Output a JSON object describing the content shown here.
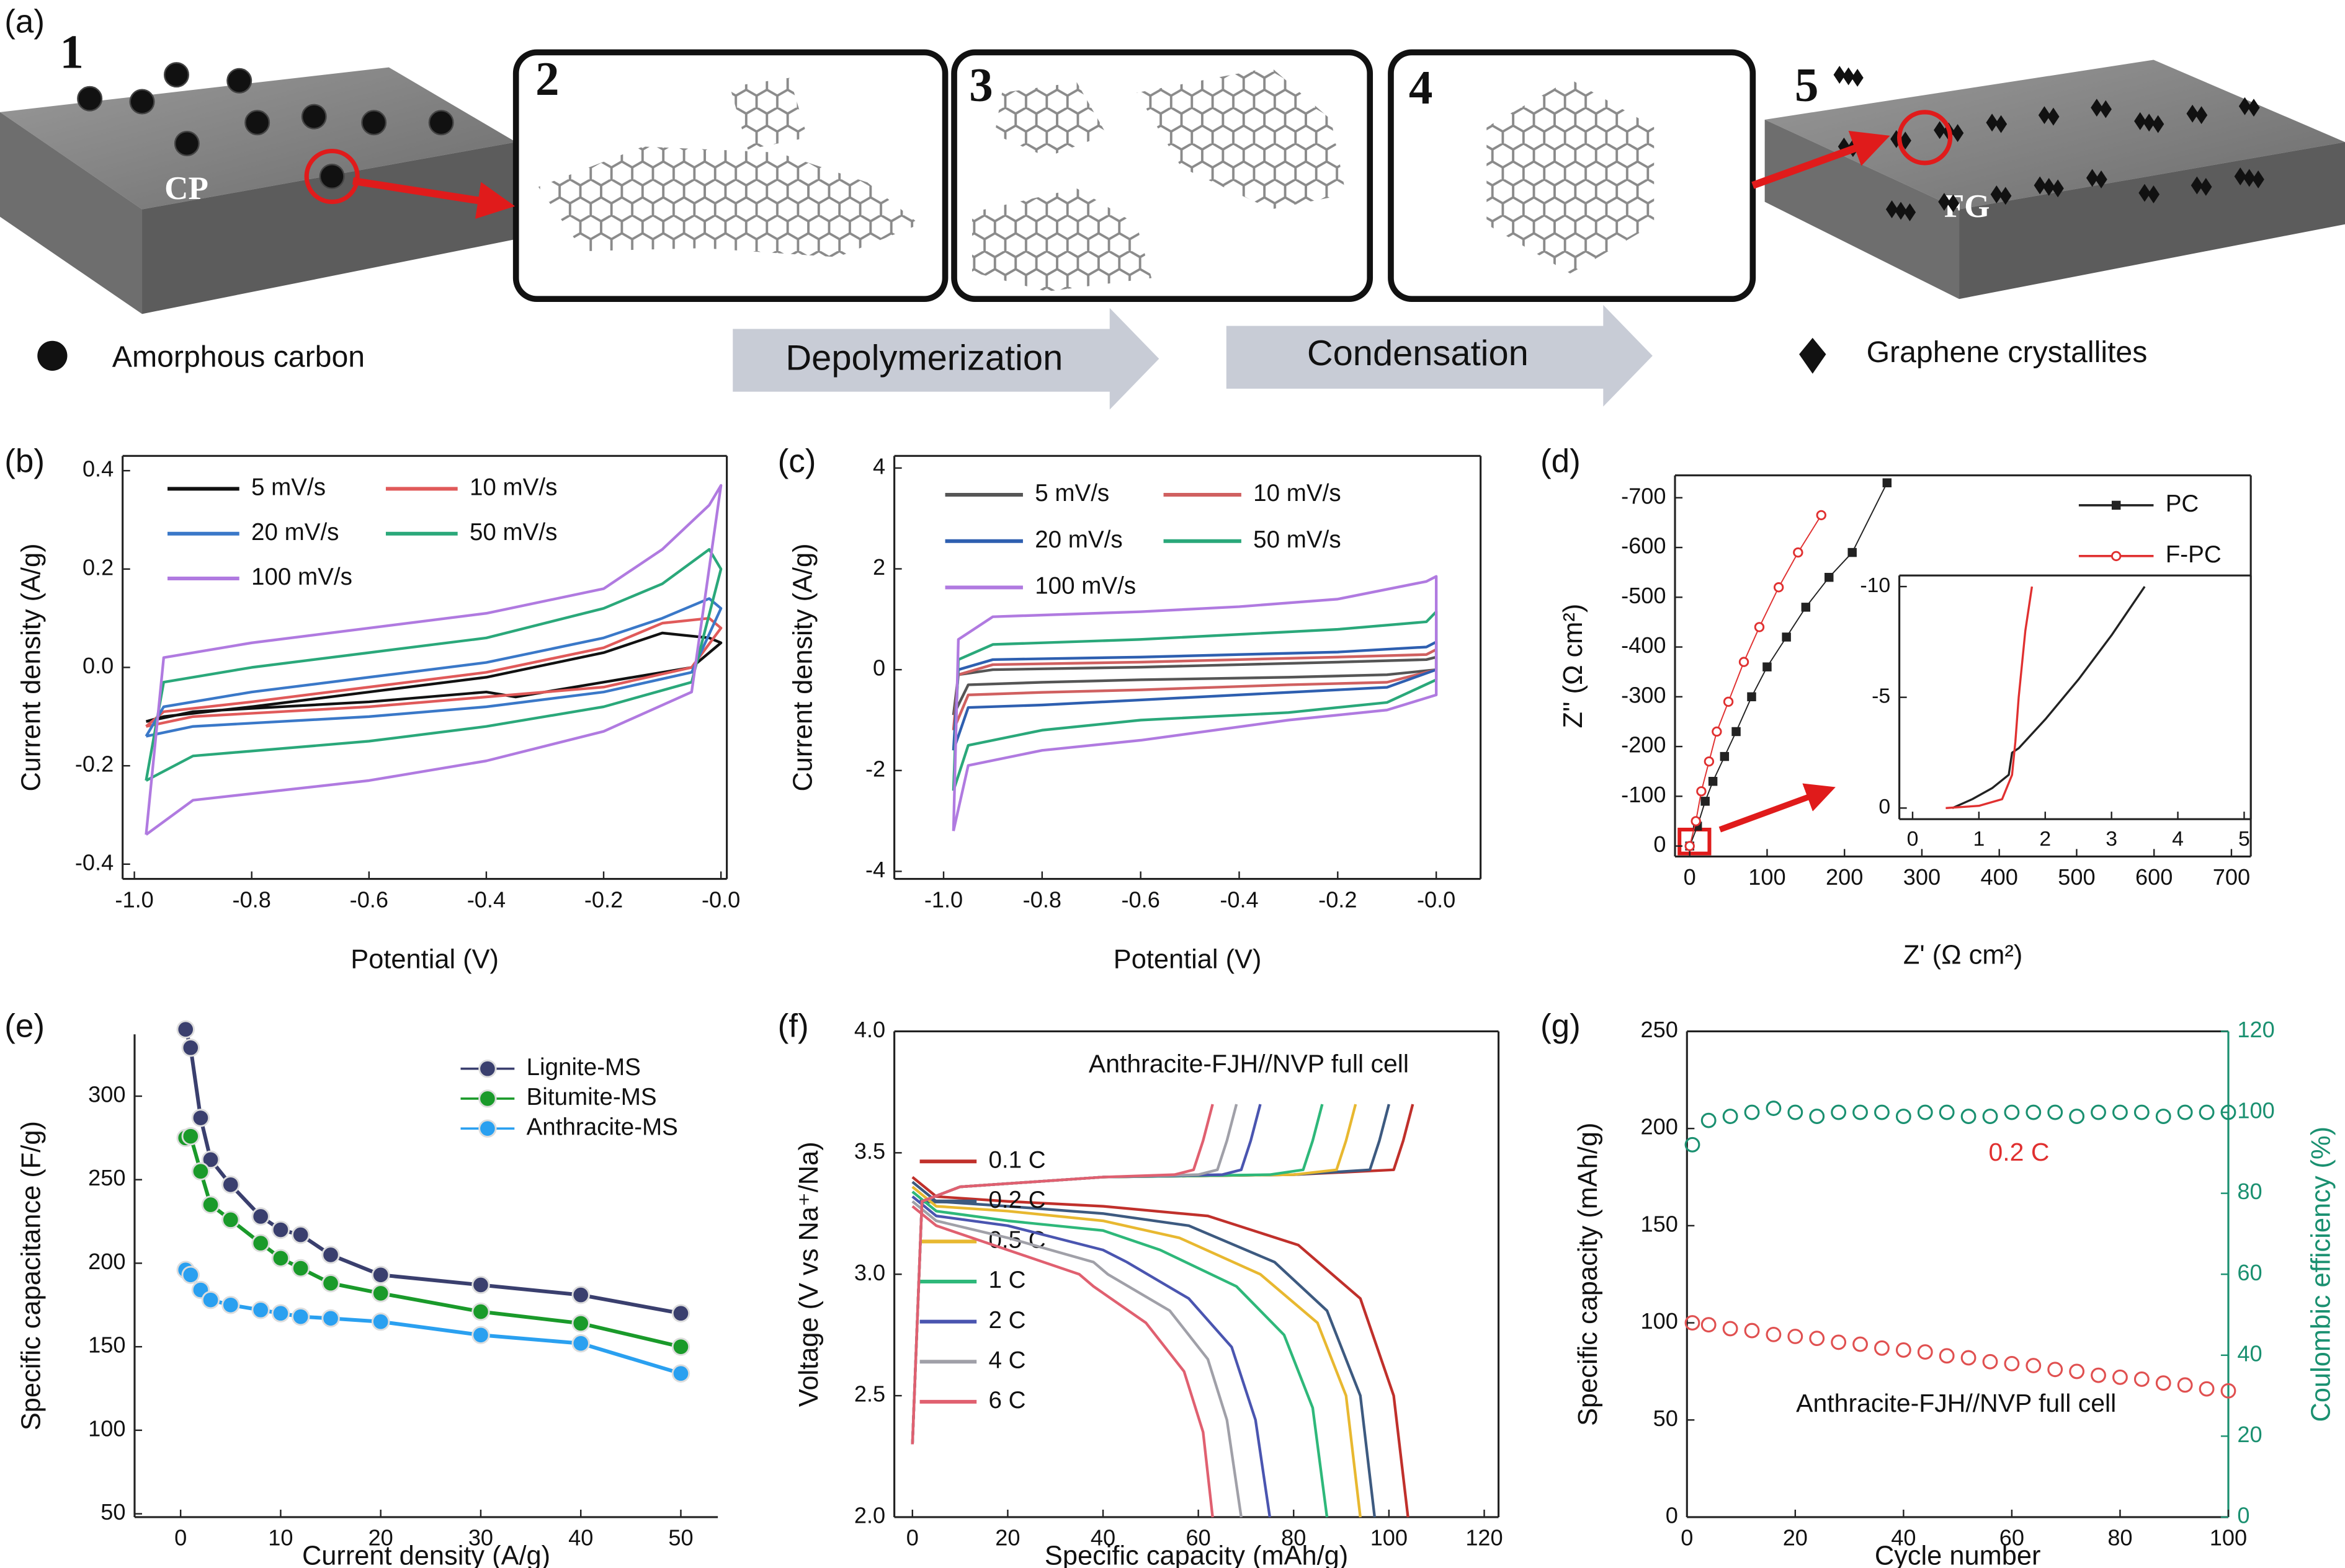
{
  "diagram": {
    "panel_label": "(a)",
    "steps": [
      "1",
      "2",
      "3",
      "4",
      "5"
    ],
    "substrates": [
      "CP",
      "FG"
    ],
    "processes": [
      "Depolymerization",
      "Condensation"
    ],
    "legend": [
      "Amorphous carbon",
      "Graphene crystallites"
    ]
  },
  "chart_data": [
    {
      "panel_label": "(b)",
      "type": "line",
      "xlabel": "Potential (V)",
      "ylabel": "Current density (A/g)",
      "xlim": [
        -1.02,
        0.01
      ],
      "xticks": [
        {
          "value": -1,
          "label": "-1.0"
        },
        -0.8,
        -0.6,
        -0.4,
        -0.2,
        {
          "value": 0,
          "label": "-0.0"
        }
      ],
      "ylim": [
        -0.43,
        0.43
      ],
      "yticks": [
        -0.4,
        -0.2,
        {
          "value": 0,
          "label": "0.0"
        },
        0.2,
        0.4
      ],
      "series": [
        {
          "name": "5 mV/s",
          "color": "#111111",
          "x": [
            -0.98,
            -0.9,
            -0.6,
            -0.4,
            -0.35,
            -0.2,
            -0.05,
            0,
            -0.02,
            -0.1,
            -0.2,
            -0.4,
            -0.6,
            -0.8,
            -0.95,
            -0.98
          ],
          "values": [
            -0.11,
            -0.09,
            -0.07,
            -0.05,
            -0.06,
            -0.03,
            0.0,
            0.05,
            0.06,
            0.07,
            0.03,
            -0.02,
            -0.05,
            -0.08,
            -0.1,
            -0.11
          ]
        },
        {
          "name": "10 mV/s",
          "color": "#e05a5a",
          "x": [
            -0.98,
            -0.9,
            -0.6,
            -0.4,
            -0.2,
            -0.05,
            0,
            -0.02,
            -0.1,
            -0.2,
            -0.4,
            -0.6,
            -0.8,
            -0.95,
            -0.98
          ],
          "values": [
            -0.12,
            -0.1,
            -0.08,
            -0.06,
            -0.04,
            0.0,
            0.08,
            0.1,
            0.09,
            0.04,
            -0.01,
            -0.04,
            -0.07,
            -0.09,
            -0.12
          ]
        },
        {
          "name": "20 mV/s",
          "color": "#3a78c8",
          "x": [
            -0.98,
            -0.9,
            -0.6,
            -0.4,
            -0.2,
            -0.05,
            0,
            -0.02,
            -0.1,
            -0.2,
            -0.4,
            -0.6,
            -0.8,
            -0.95,
            -0.98
          ],
          "values": [
            -0.14,
            -0.12,
            -0.1,
            -0.08,
            -0.05,
            -0.01,
            0.12,
            0.14,
            0.1,
            0.06,
            0.01,
            -0.02,
            -0.05,
            -0.08,
            -0.14
          ]
        },
        {
          "name": "50 mV/s",
          "color": "#2aa87a",
          "x": [
            -0.98,
            -0.9,
            -0.6,
            -0.4,
            -0.2,
            -0.05,
            0,
            -0.02,
            -0.1,
            -0.2,
            -0.4,
            -0.6,
            -0.8,
            -0.95,
            -0.98
          ],
          "values": [
            -0.23,
            -0.18,
            -0.15,
            -0.12,
            -0.08,
            -0.03,
            0.2,
            0.24,
            0.17,
            0.12,
            0.06,
            0.03,
            0.0,
            -0.03,
            -0.23
          ]
        },
        {
          "name": "100 mV/s",
          "color": "#b07ae0",
          "x": [
            -0.98,
            -0.9,
            -0.6,
            -0.4,
            -0.2,
            -0.05,
            0,
            -0.02,
            -0.1,
            -0.2,
            -0.4,
            -0.6,
            -0.8,
            -0.95,
            -0.98
          ],
          "values": [
            -0.34,
            -0.27,
            -0.23,
            -0.19,
            -0.13,
            -0.05,
            0.37,
            0.33,
            0.24,
            0.16,
            0.11,
            0.08,
            0.05,
            0.02,
            -0.34
          ]
        }
      ]
    },
    {
      "panel_label": "(c)",
      "type": "line",
      "xlabel": "Potential (V)",
      "ylabel": "Current density (A/g)",
      "xlim": [
        -1.1,
        0.09
      ],
      "xticks": [
        {
          "value": -1,
          "label": "-1.0"
        },
        -0.8,
        -0.6,
        -0.4,
        -0.2,
        {
          "value": 0,
          "label": "-0.0"
        }
      ],
      "ylim": [
        -4.15,
        4.24
      ],
      "yticks": [
        -4,
        -2,
        0,
        2,
        4
      ],
      "x": [
        -0.98,
        -0.95,
        -0.8,
        -0.6,
        -0.3,
        -0.1,
        0,
        0,
        -0.02,
        -0.2,
        -0.4,
        -0.6,
        -0.9,
        -0.97,
        -0.98
      ],
      "series": [
        {
          "name": "5 mV/s",
          "color": "#555555",
          "values": [
            -0.9,
            -0.3,
            -0.25,
            -0.2,
            -0.15,
            -0.1,
            0.0,
            0.25,
            0.2,
            0.15,
            0.1,
            0.05,
            0.0,
            -0.1,
            -0.9
          ]
        },
        {
          "name": "10 mV/s",
          "color": "#d06060",
          "values": [
            -1.2,
            -0.5,
            -0.45,
            -0.4,
            -0.3,
            -0.25,
            0.0,
            0.4,
            0.3,
            0.25,
            0.2,
            0.15,
            0.1,
            -0.1,
            -1.2
          ]
        },
        {
          "name": "20 mV/s",
          "color": "#2e5fb0",
          "values": [
            -1.6,
            -0.75,
            -0.7,
            -0.6,
            -0.45,
            -0.35,
            0.0,
            0.55,
            0.45,
            0.35,
            0.3,
            0.25,
            0.2,
            0.0,
            -1.6
          ]
        },
        {
          "name": "50 mV/s",
          "color": "#2aa87a",
          "values": [
            -2.4,
            -1.5,
            -1.2,
            -1.0,
            -0.85,
            -0.65,
            -0.2,
            1.15,
            0.95,
            0.8,
            0.7,
            0.6,
            0.5,
            0.2,
            -2.4
          ]
        },
        {
          "name": "100 mV/s",
          "color": "#b07ae0",
          "values": [
            -3.2,
            -1.9,
            -1.6,
            -1.4,
            -1.0,
            -0.8,
            -0.5,
            1.85,
            1.75,
            1.4,
            1.25,
            1.15,
            1.05,
            0.6,
            -3.2
          ]
        }
      ]
    },
    {
      "panel_label": "(d)",
      "type": "line",
      "markers": true,
      "xlabel": "Z' (Ω cm²)",
      "ylabel": "Z'' (Ω cm²)",
      "xlim": [
        -19,
        725
      ],
      "xticks": [
        0,
        100,
        200,
        300,
        400,
        500,
        600,
        700
      ],
      "ylim": [
        21,
        -745
      ],
      "yticks": [
        0,
        -100,
        -200,
        -300,
        -400,
        -500,
        -600,
        -700
      ],
      "series": [
        {
          "name": "PC",
          "color": "#222222",
          "marker": "square",
          "x": [
            0,
            10,
            20,
            30,
            45,
            60,
            80,
            100,
            125,
            150,
            180,
            210,
            255
          ],
          "values": [
            0,
            -40,
            -90,
            -130,
            -180,
            -230,
            -300,
            -360,
            -420,
            -480,
            -540,
            -590,
            -730
          ]
        },
        {
          "name": "F-PC",
          "color": "#e03030",
          "marker": "circle",
          "x": [
            0,
            8,
            15,
            25,
            35,
            50,
            70,
            90,
            115,
            140,
            170
          ],
          "values": [
            0,
            -50,
            -110,
            -170,
            -230,
            -290,
            -370,
            -440,
            -520,
            -590,
            -665
          ]
        }
      ],
      "inset": {
        "type": "line",
        "xlim": [
          -0.2,
          5.1
        ],
        "xticks": [
          0,
          1,
          2,
          3,
          4,
          5
        ],
        "ylim": [
          0.5,
          -10.5
        ],
        "yticks": [
          0,
          -5,
          -10
        ],
        "series": [
          {
            "color": "#222222",
            "x": [
              0.6,
              0.9,
              1.2,
              1.45,
              1.5,
              1.6,
              2.0,
              2.5,
              3.0,
              3.5
            ],
            "values": [
              0,
              -0.4,
              -0.9,
              -1.5,
              -2.5,
              -2.7,
              -4.0,
              -5.8,
              -7.8,
              -10.0
            ]
          },
          {
            "color": "#e03030",
            "x": [
              0.5,
              1.0,
              1.35,
              1.5,
              1.55,
              1.6,
              1.7,
              1.8
            ],
            "values": [
              0,
              -0.1,
              -0.4,
              -1.5,
              -3,
              -5,
              -8,
              -10.0
            ]
          }
        ]
      }
    },
    {
      "panel_label": "(e)",
      "type": "line",
      "markers": true,
      "xlabel": "Current density (A/g)",
      "ylabel": "Specific capacitance (F/g)",
      "xlim": [
        -4.6,
        53.7
      ],
      "xticks": [
        0,
        10,
        20,
        30,
        40,
        50
      ],
      "ylim": [
        48,
        337
      ],
      "yticks": [
        50,
        100,
        150,
        200,
        250,
        300
      ],
      "x": [
        0.5,
        1,
        2,
        3,
        5,
        8,
        10,
        12,
        15,
        20,
        30,
        40,
        50
      ],
      "series": [
        {
          "name": "Lignite-MS",
          "color": "#3a3f6e",
          "values": [
            340,
            329,
            287,
            262,
            247,
            228,
            220,
            217,
            205,
            193,
            187,
            181,
            170
          ]
        },
        {
          "name": "Bitumite-MS",
          "color": "#1a9a2a",
          "values": [
            275,
            276,
            255,
            235,
            226,
            212,
            203,
            197,
            188,
            182,
            171,
            164,
            150
          ]
        },
        {
          "name": "Anthracite-MS",
          "color": "#2aa0f0",
          "values": [
            196,
            193,
            184,
            178,
            175,
            172,
            170,
            168,
            167,
            165,
            157,
            152,
            134
          ]
        }
      ]
    },
    {
      "panel_label": "(f)",
      "type": "line",
      "xlabel": "Specific capacity (mAh/g)",
      "ylabel": "Voltage (V vs Na⁺/Na)",
      "annotations": [
        "Anthracite-FJH//NVP full cell"
      ],
      "xlim": [
        -3.8,
        123
      ],
      "xticks": [
        0,
        20,
        40,
        60,
        80,
        100,
        120
      ],
      "ylim": [
        2,
        4
      ],
      "yticks": [
        {
          "value": 2,
          "label": "2.0"
        },
        2.5,
        {
          "value": 3,
          "label": "3.0"
        },
        3.5,
        {
          "value": 4,
          "label": "4.0"
        }
      ],
      "series": [
        {
          "name": "0.1 C",
          "color": "#c0302b",
          "x": [
            0,
            2,
            10,
            40,
            80,
            101,
            103,
            105,
            null,
            0,
            5,
            20,
            40,
            62,
            81,
            94,
            101,
            104
          ],
          "values": [
            2.3,
            3.3,
            3.36,
            3.4,
            3.41,
            3.43,
            3.55,
            3.7,
            null,
            3.4,
            3.32,
            3.3,
            3.28,
            3.24,
            3.12,
            2.9,
            2.5,
            2.0
          ]
        },
        {
          "name": "0.2 C",
          "color": "#3d5a80",
          "x": [
            0,
            2,
            10,
            40,
            80,
            96,
            98,
            100,
            null,
            0,
            5,
            20,
            40,
            58,
            76,
            87,
            94,
            97
          ],
          "values": [
            2.3,
            3.3,
            3.36,
            3.4,
            3.41,
            3.43,
            3.55,
            3.7,
            null,
            3.38,
            3.3,
            3.28,
            3.25,
            3.2,
            3.05,
            2.85,
            2.5,
            2.0
          ]
        },
        {
          "name": "0.5 C",
          "color": "#e8b830",
          "x": [
            0,
            2,
            10,
            40,
            80,
            89,
            91,
            93,
            null,
            0,
            5,
            20,
            40,
            56,
            73,
            85,
            91,
            94
          ],
          "values": [
            2.3,
            3.3,
            3.36,
            3.4,
            3.41,
            3.43,
            3.55,
            3.7,
            null,
            3.36,
            3.28,
            3.26,
            3.22,
            3.15,
            3.0,
            2.8,
            2.5,
            2.0
          ]
        },
        {
          "name": "1 C",
          "color": "#2eb87a",
          "x": [
            0,
            2,
            10,
            40,
            75,
            82,
            84,
            86,
            null,
            0,
            5,
            20,
            40,
            52,
            68,
            78,
            84,
            87
          ],
          "values": [
            2.3,
            3.3,
            3.36,
            3.4,
            3.41,
            3.43,
            3.55,
            3.7,
            null,
            3.34,
            3.26,
            3.22,
            3.18,
            3.1,
            2.95,
            2.75,
            2.45,
            2.0
          ]
        },
        {
          "name": "2 C",
          "color": "#4a55b0",
          "x": [
            0,
            2,
            10,
            40,
            65,
            69,
            71,
            73,
            null,
            0,
            5,
            20,
            40,
            45,
            58,
            67,
            72,
            75
          ],
          "values": [
            2.3,
            3.3,
            3.36,
            3.4,
            3.41,
            3.43,
            3.55,
            3.7,
            null,
            3.32,
            3.24,
            3.2,
            3.1,
            3.05,
            2.9,
            2.7,
            2.4,
            2.0
          ]
        },
        {
          "name": "4 C",
          "color": "#a0a0a8",
          "x": [
            0,
            2,
            10,
            40,
            60,
            64,
            66,
            68,
            null,
            0,
            5,
            20,
            38,
            41,
            54,
            62,
            66,
            69
          ],
          "values": [
            2.3,
            3.3,
            3.36,
            3.4,
            3.41,
            3.43,
            3.55,
            3.7,
            null,
            3.3,
            3.22,
            3.15,
            3.05,
            3.0,
            2.85,
            2.65,
            2.4,
            2.0
          ]
        },
        {
          "name": "6 C",
          "color": "#e06070",
          "x": [
            0,
            2,
            10,
            40,
            55,
            59,
            61,
            63,
            null,
            0,
            5,
            20,
            35,
            38,
            49,
            57,
            61,
            63
          ],
          "values": [
            2.3,
            3.3,
            3.36,
            3.4,
            3.41,
            3.43,
            3.55,
            3.7,
            null,
            3.28,
            3.2,
            3.1,
            3.0,
            2.95,
            2.8,
            2.6,
            2.35,
            2.0
          ]
        }
      ]
    },
    {
      "panel_label": "(g)",
      "type": "scatter",
      "xlabel": "Cycle number",
      "ylabel": "Specific capacity (mAh/g)",
      "y2label": "Coulombic efficiency (%)",
      "annotations": [
        "0.2 C",
        "Anthracite-FJH//NVP full cell"
      ],
      "xlim": [
        0,
        100
      ],
      "xticks": [
        0,
        20,
        40,
        60,
        80,
        100
      ],
      "ylim": [
        0,
        250
      ],
      "yticks": [
        0,
        50,
        100,
        150,
        200,
        250
      ],
      "y2lim": [
        0,
        120
      ],
      "y2ticks": [
        0,
        20,
        40,
        60,
        80,
        100,
        120
      ],
      "x": [
        1,
        4,
        8,
        12,
        16,
        20,
        24,
        28,
        32,
        36,
        40,
        44,
        48,
        52,
        56,
        60,
        64,
        68,
        72,
        76,
        80,
        84,
        88,
        92,
        96,
        100
      ],
      "series": [
        {
          "color": "#e05050",
          "values": [
            100,
            99,
            97,
            96,
            94,
            93,
            92,
            90,
            89,
            87,
            86,
            85,
            83,
            82,
            80,
            79,
            78,
            76,
            75,
            73,
            72,
            71,
            69,
            68,
            66,
            65
          ]
        },
        {
          "color": "#1a9070",
          "axis": "y2",
          "values": [
            92,
            98,
            99,
            100,
            101,
            100,
            99,
            100,
            100,
            100,
            99,
            100,
            100,
            99,
            99,
            100,
            100,
            100,
            99,
            100,
            100,
            100,
            99,
            100,
            100,
            100
          ]
        }
      ]
    }
  ]
}
